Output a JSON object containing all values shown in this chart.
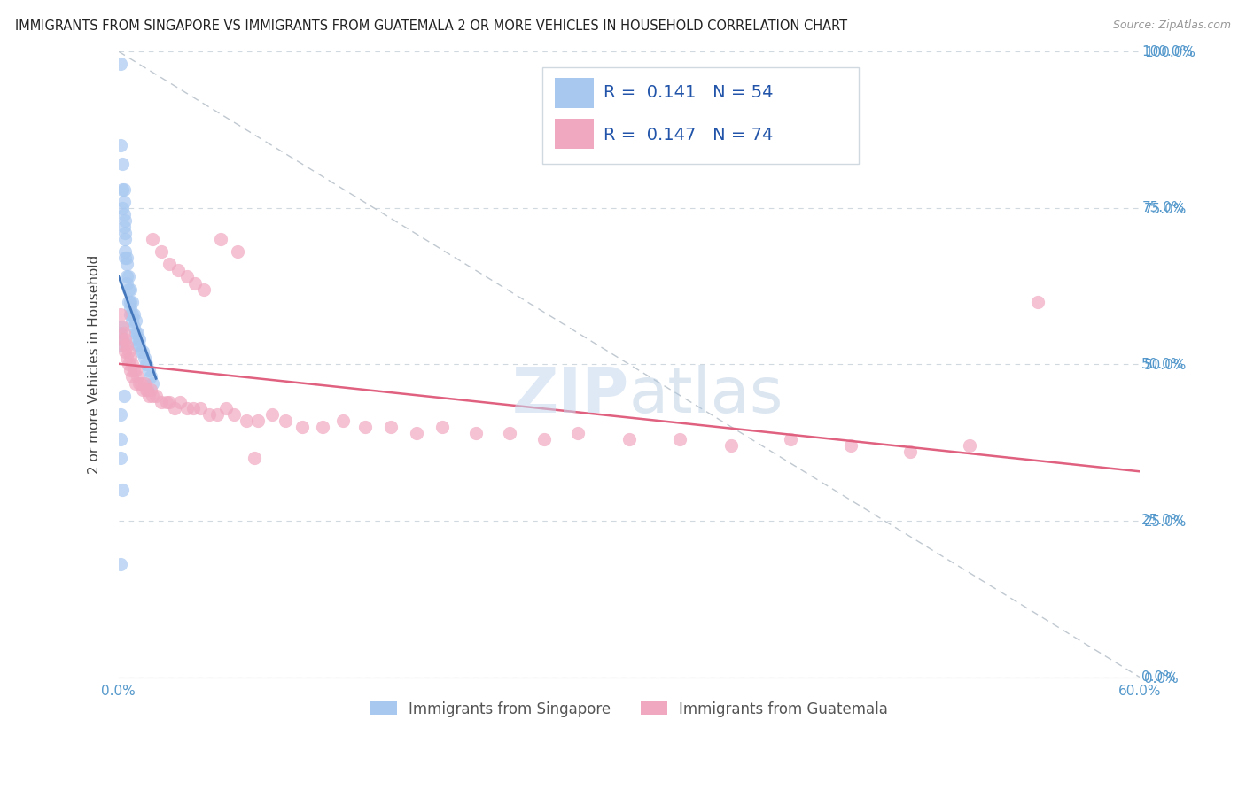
{
  "title": "IMMIGRANTS FROM SINGAPORE VS IMMIGRANTS FROM GUATEMALA 2 OR MORE VEHICLES IN HOUSEHOLD CORRELATION CHART",
  "source": "Source: ZipAtlas.com",
  "ylabel": "2 or more Vehicles in Household",
  "xlim": [
    0.0,
    0.6
  ],
  "ylim": [
    0.0,
    1.0
  ],
  "legend_labels": [
    "Immigrants from Singapore",
    "Immigrants from Guatemala"
  ],
  "legend_R": [
    0.141,
    0.147
  ],
  "legend_N": [
    54,
    74
  ],
  "color_singapore": "#a8c8f0",
  "color_guatemala": "#f0a8c0",
  "color_regression_singapore": "#4477bb",
  "color_regression_guatemala": "#e06080",
  "watermark": "ZIPatlas",
  "background_color": "#ffffff",
  "grid_color": "#d0d8e0",
  "tick_color": "#5599cc",
  "singapore_x": [
    0.001,
    0.001,
    0.002,
    0.002,
    0.002,
    0.003,
    0.003,
    0.003,
    0.003,
    0.004,
    0.004,
    0.004,
    0.004,
    0.004,
    0.005,
    0.005,
    0.005,
    0.005,
    0.006,
    0.006,
    0.006,
    0.007,
    0.007,
    0.007,
    0.007,
    0.008,
    0.008,
    0.008,
    0.009,
    0.009,
    0.01,
    0.01,
    0.01,
    0.011,
    0.011,
    0.012,
    0.012,
    0.013,
    0.014,
    0.015,
    0.016,
    0.018,
    0.019,
    0.02,
    0.001,
    0.001,
    0.002,
    0.002,
    0.001,
    0.001,
    0.001,
    0.002,
    0.003,
    0.001
  ],
  "singapore_y": [
    0.98,
    0.85,
    0.82,
    0.78,
    0.75,
    0.78,
    0.76,
    0.74,
    0.72,
    0.73,
    0.71,
    0.7,
    0.68,
    0.67,
    0.67,
    0.66,
    0.64,
    0.63,
    0.64,
    0.62,
    0.6,
    0.62,
    0.6,
    0.59,
    0.58,
    0.6,
    0.58,
    0.57,
    0.58,
    0.56,
    0.57,
    0.55,
    0.54,
    0.55,
    0.53,
    0.54,
    0.53,
    0.52,
    0.52,
    0.51,
    0.5,
    0.49,
    0.48,
    0.47,
    0.56,
    0.55,
    0.54,
    0.53,
    0.42,
    0.38,
    0.35,
    0.3,
    0.45,
    0.18
  ],
  "guatemala_x": [
    0.001,
    0.002,
    0.002,
    0.003,
    0.003,
    0.004,
    0.004,
    0.005,
    0.005,
    0.006,
    0.006,
    0.007,
    0.007,
    0.008,
    0.008,
    0.009,
    0.01,
    0.01,
    0.011,
    0.012,
    0.013,
    0.014,
    0.015,
    0.016,
    0.017,
    0.018,
    0.019,
    0.02,
    0.022,
    0.025,
    0.028,
    0.03,
    0.033,
    0.036,
    0.04,
    0.044,
    0.048,
    0.053,
    0.058,
    0.063,
    0.068,
    0.075,
    0.082,
    0.09,
    0.098,
    0.108,
    0.12,
    0.132,
    0.145,
    0.16,
    0.175,
    0.19,
    0.21,
    0.23,
    0.25,
    0.27,
    0.3,
    0.33,
    0.36,
    0.395,
    0.43,
    0.465,
    0.5,
    0.54,
    0.02,
    0.025,
    0.03,
    0.035,
    0.04,
    0.045,
    0.05,
    0.06,
    0.07,
    0.08
  ],
  "guatemala_y": [
    0.58,
    0.56,
    0.54,
    0.55,
    0.53,
    0.54,
    0.52,
    0.53,
    0.51,
    0.52,
    0.5,
    0.51,
    0.49,
    0.5,
    0.48,
    0.49,
    0.49,
    0.47,
    0.48,
    0.47,
    0.47,
    0.46,
    0.47,
    0.46,
    0.46,
    0.45,
    0.46,
    0.45,
    0.45,
    0.44,
    0.44,
    0.44,
    0.43,
    0.44,
    0.43,
    0.43,
    0.43,
    0.42,
    0.42,
    0.43,
    0.42,
    0.41,
    0.41,
    0.42,
    0.41,
    0.4,
    0.4,
    0.41,
    0.4,
    0.4,
    0.39,
    0.4,
    0.39,
    0.39,
    0.38,
    0.39,
    0.38,
    0.38,
    0.37,
    0.38,
    0.37,
    0.36,
    0.37,
    0.6,
    0.7,
    0.68,
    0.66,
    0.65,
    0.64,
    0.63,
    0.62,
    0.7,
    0.68,
    0.35
  ]
}
